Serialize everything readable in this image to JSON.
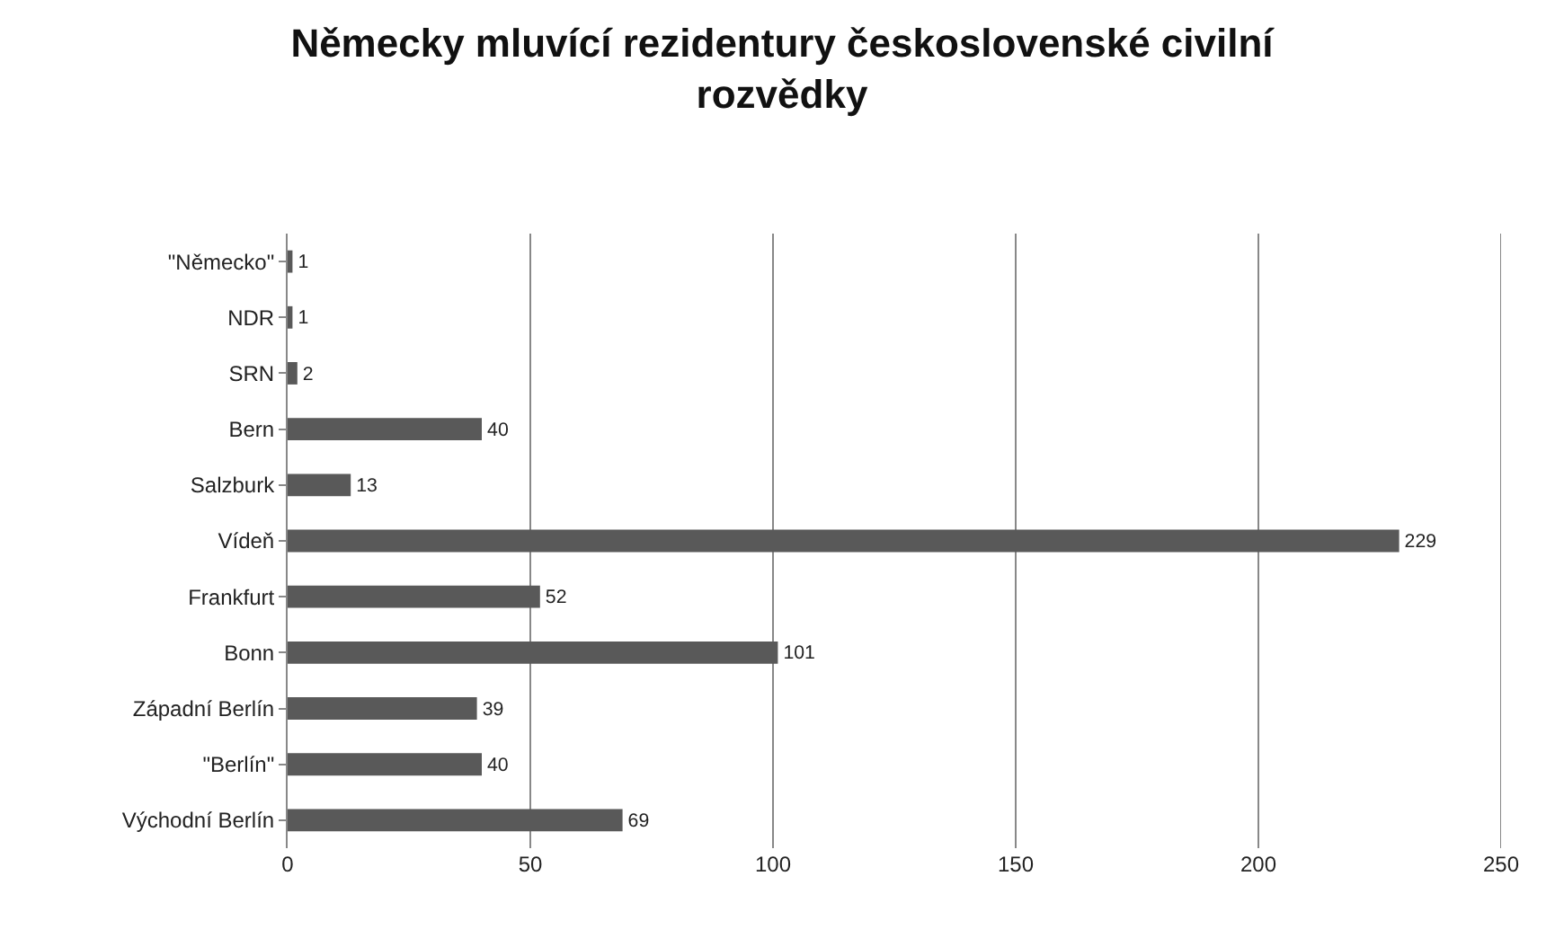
{
  "chart_data": {
    "type": "bar",
    "orientation": "horizontal",
    "title": "Německy mluvící rezidentury československé civilní rozvědky",
    "categories": [
      "\"Německo\"",
      "NDR",
      "SRN",
      "Bern",
      "Salzburk",
      "Vídeň",
      "Frankfurt",
      "Bonn",
      "Západní Berlín",
      "\"Berlín\"",
      "Východní Berlín"
    ],
    "values": [
      1,
      1,
      2,
      40,
      13,
      229,
      52,
      101,
      39,
      40,
      69
    ],
    "color": "#595959",
    "xlim": [
      0,
      250
    ],
    "xticks": [
      0,
      50,
      100,
      150,
      200,
      250
    ],
    "grid": "x",
    "data_labels": true
  }
}
